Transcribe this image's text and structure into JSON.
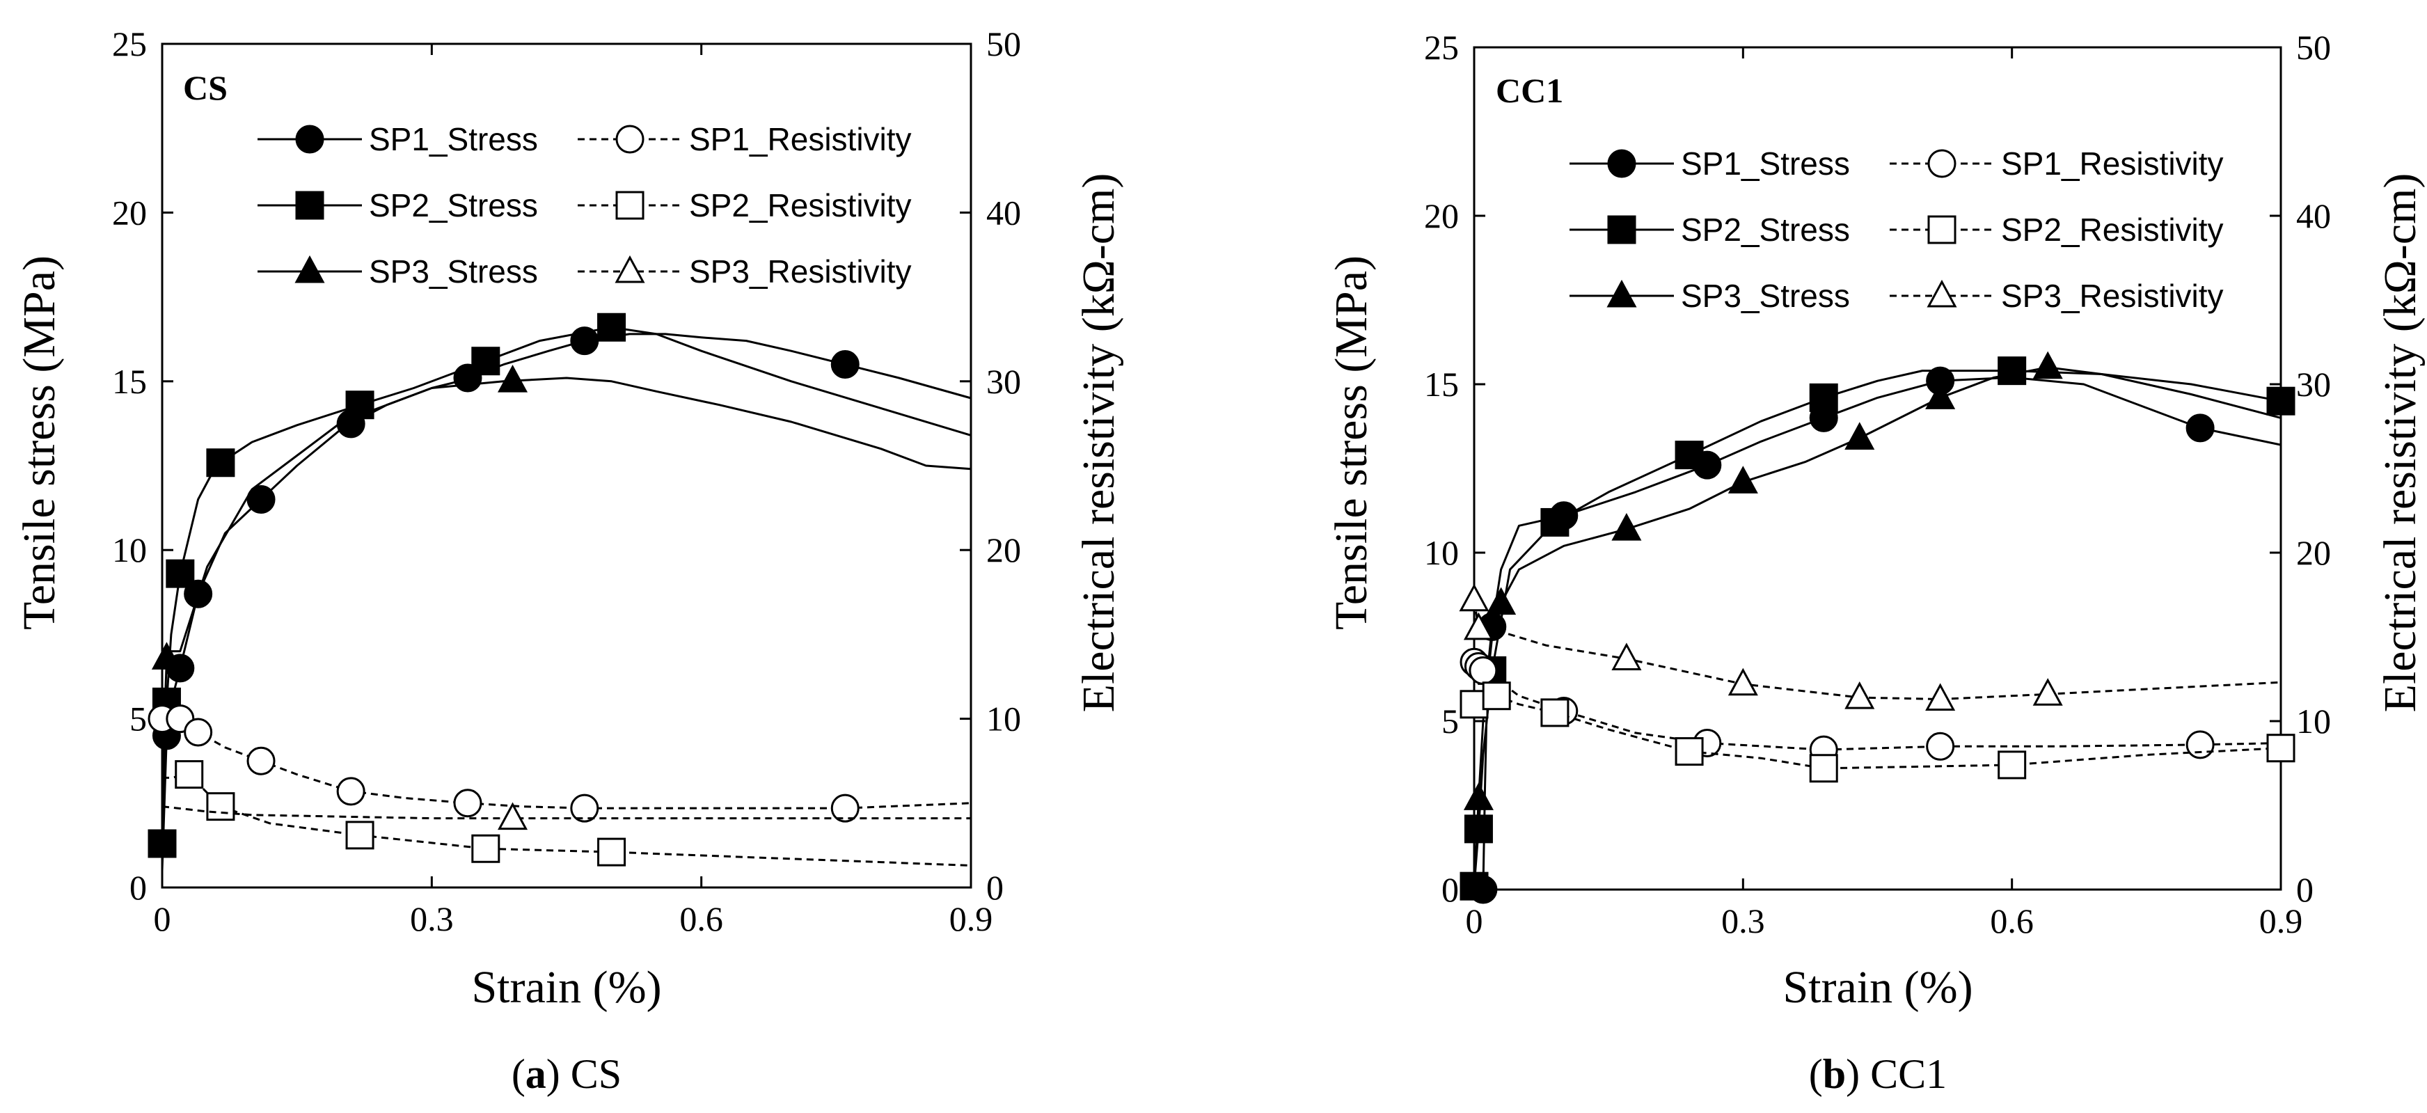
{
  "chart_data": [
    {
      "type": "line",
      "panel_label": "CS",
      "caption_letter": "a",
      "caption_text": "CS",
      "xlabel": "Strain (%)",
      "ylabel": "Tensile stress (MPa)",
      "y2label": "Electrical resistivity (kΩ-cm)",
      "xlim": [
        0,
        0.9
      ],
      "ylim": [
        0,
        25
      ],
      "y2lim": [
        0,
        50
      ],
      "xticks": [
        0,
        0.3,
        0.6,
        0.9
      ],
      "xtick_labels": [
        "0",
        "0.3",
        "0.6",
        "0.9"
      ],
      "yticks": [
        0,
        5,
        10,
        15,
        20,
        25
      ],
      "y2ticks": [
        0,
        10,
        20,
        30,
        40,
        50
      ],
      "grid": false,
      "legend": {
        "position": "top-right",
        "entries": [
          "SP1_Stress",
          "SP1_Resistivity",
          "SP2_Stress",
          "SP2_Resistivity",
          "SP3_Stress",
          "SP3_Resistivity"
        ]
      },
      "series": [
        {
          "name": "SP1_Stress",
          "axis": "left",
          "marker": "circle",
          "filled": true,
          "dashed": false,
          "x": [
            0,
            0.005,
            0.01,
            0.02,
            0.04,
            0.07,
            0.11,
            0.15,
            0.2,
            0.25,
            0.3,
            0.33,
            0.38,
            0.43,
            0.47,
            0.52,
            0.56,
            0.6,
            0.65,
            0.7,
            0.76,
            0.82,
            0.9
          ],
          "y": [
            0.5,
            4.5,
            5.5,
            6.5,
            8.7,
            10.5,
            11.5,
            12.5,
            13.6,
            14.3,
            14.8,
            15.0,
            15.5,
            15.9,
            16.2,
            16.4,
            16.4,
            16.3,
            16.2,
            15.9,
            15.5,
            15.1,
            14.5
          ],
          "marker_x": [
            0.005,
            0.02,
            0.04,
            0.11,
            0.21,
            0.34,
            0.47,
            0.76
          ]
        },
        {
          "name": "SP2_Stress",
          "axis": "left",
          "marker": "square",
          "filled": true,
          "dashed": false,
          "x": [
            0,
            0.002,
            0.005,
            0.01,
            0.02,
            0.04,
            0.06,
            0.1,
            0.15,
            0.22,
            0.28,
            0.35,
            0.42,
            0.5,
            0.55,
            0.6,
            0.7,
            0.8,
            0.9
          ],
          "y": [
            1.3,
            3.5,
            5.5,
            7.5,
            9.3,
            11.5,
            12.5,
            13.2,
            13.7,
            14.3,
            14.8,
            15.5,
            16.2,
            16.6,
            16.4,
            15.9,
            15.0,
            14.2,
            13.4
          ],
          "marker_x": [
            0,
            0.005,
            0.02,
            0.065,
            0.22,
            0.36,
            0.5
          ]
        },
        {
          "name": "SP3_Stress",
          "axis": "left",
          "marker": "triangle",
          "filled": true,
          "dashed": false,
          "x": [
            0,
            0.005,
            0.01,
            0.02,
            0.05,
            0.1,
            0.15,
            0.2,
            0.3,
            0.38,
            0.45,
            0.5,
            0.55,
            0.62,
            0.7,
            0.8,
            0.85,
            0.9
          ],
          "y": [
            3.0,
            6.8,
            7.0,
            7.0,
            9.5,
            11.8,
            12.8,
            13.8,
            14.8,
            15.0,
            15.1,
            15.0,
            14.7,
            14.3,
            13.8,
            13.0,
            12.5,
            12.4
          ],
          "marker_x": [
            0.005,
            0.39
          ]
        },
        {
          "name": "SP1_Resistivity",
          "axis": "right",
          "marker": "circle",
          "filled": false,
          "dashed": true,
          "x": [
            0,
            0.02,
            0.04,
            0.07,
            0.11,
            0.15,
            0.21,
            0.27,
            0.34,
            0.4,
            0.47,
            0.6,
            0.76,
            0.9
          ],
          "y": [
            10.0,
            10.0,
            9.2,
            8.3,
            7.5,
            6.7,
            5.7,
            5.3,
            5.0,
            4.8,
            4.7,
            4.7,
            4.7,
            5.0
          ],
          "marker_x": [
            0,
            0.02,
            0.04,
            0.11,
            0.21,
            0.34,
            0.47,
            0.76
          ]
        },
        {
          "name": "SP2_Resistivity",
          "axis": "right",
          "marker": "square",
          "filled": false,
          "dashed": true,
          "x": [
            0,
            0.01,
            0.03,
            0.065,
            0.12,
            0.22,
            0.36,
            0.5,
            0.65,
            0.8,
            0.9
          ],
          "y": [
            6.5,
            6.5,
            6.7,
            4.8,
            3.8,
            3.1,
            2.3,
            2.1,
            1.8,
            1.5,
            1.3
          ],
          "marker_x": [
            0.03,
            0.065,
            0.22,
            0.36,
            0.5
          ]
        },
        {
          "name": "SP3_Resistivity",
          "axis": "right",
          "marker": "triangle",
          "filled": false,
          "dashed": true,
          "x": [
            0,
            0.05,
            0.1,
            0.2,
            0.3,
            0.39,
            0.5,
            0.6,
            0.7,
            0.8,
            0.9
          ],
          "y": [
            4.8,
            4.5,
            4.3,
            4.2,
            4.1,
            4.1,
            4.1,
            4.1,
            4.1,
            4.1,
            4.1
          ],
          "marker_x": [
            0.39
          ]
        }
      ]
    },
    {
      "type": "line",
      "panel_label": "CC1",
      "caption_letter": "b",
      "caption_text": "CC1",
      "xlabel": "Strain (%)",
      "ylabel": "Tensile stress (MPa)",
      "y2label": "Electrical resistivity (kΩ-cm)",
      "xlim": [
        0,
        0.9
      ],
      "ylim": [
        0,
        25
      ],
      "y2lim": [
        0,
        50
      ],
      "xticks": [
        0,
        0.3,
        0.6,
        0.9
      ],
      "xtick_labels": [
        "0",
        "0.3",
        "0.6",
        "0.9"
      ],
      "yticks": [
        0,
        5,
        10,
        15,
        20,
        25
      ],
      "y2ticks": [
        0,
        10,
        20,
        30,
        40,
        50
      ],
      "grid": false,
      "legend": {
        "position": "top-right",
        "entries": [
          "SP1_Stress",
          "SP1_Resistivity",
          "SP2_Stress",
          "SP2_Resistivity",
          "SP3_Stress",
          "SP3_Resistivity"
        ]
      },
      "series": [
        {
          "name": "SP1_Stress",
          "axis": "left",
          "marker": "circle",
          "filled": true,
          "dashed": false,
          "x": [
            0.01,
            0.012,
            0.015,
            0.02,
            0.03,
            0.05,
            0.1,
            0.18,
            0.26,
            0.32,
            0.39,
            0.45,
            0.52,
            0.6,
            0.68,
            0.75,
            0.81,
            0.9
          ],
          "y": [
            0,
            3.0,
            6.5,
            7.8,
            9.5,
            10.8,
            11.1,
            11.8,
            12.6,
            13.3,
            14.0,
            14.6,
            15.1,
            15.2,
            15.0,
            14.3,
            13.7,
            13.2
          ],
          "marker_x": [
            0.01,
            0.02,
            0.1,
            0.26,
            0.39,
            0.52,
            0.81
          ]
        },
        {
          "name": "SP2_Stress",
          "axis": "left",
          "marker": "square",
          "filled": true,
          "dashed": false,
          "x": [
            0,
            0.005,
            0.01,
            0.02,
            0.04,
            0.09,
            0.15,
            0.24,
            0.32,
            0.39,
            0.45,
            0.5,
            0.6,
            0.7,
            0.8,
            0.9
          ],
          "y": [
            0.1,
            1.8,
            4.0,
            6.5,
            9.5,
            10.9,
            11.8,
            12.9,
            13.9,
            14.6,
            15.1,
            15.4,
            15.4,
            15.3,
            15.0,
            14.5
          ],
          "marker_x": [
            0,
            0.005,
            0.02,
            0.09,
            0.24,
            0.39,
            0.6,
            0.9
          ]
        },
        {
          "name": "SP3_Stress",
          "axis": "left",
          "marker": "triangle",
          "filled": true,
          "dashed": false,
          "x": [
            0,
            0.005,
            0.01,
            0.02,
            0.03,
            0.05,
            0.1,
            0.17,
            0.24,
            0.3,
            0.37,
            0.43,
            0.52,
            0.58,
            0.64,
            0.7,
            0.8,
            0.9
          ],
          "y": [
            0,
            2.7,
            5.0,
            7.5,
            8.5,
            9.5,
            10.2,
            10.7,
            11.3,
            12.1,
            12.7,
            13.4,
            14.6,
            15.2,
            15.5,
            15.3,
            14.7,
            14.0
          ],
          "marker_x": [
            0.005,
            0.03,
            0.17,
            0.3,
            0.43,
            0.52,
            0.64
          ]
        },
        {
          "name": "SP1_Resistivity",
          "axis": "right",
          "marker": "circle",
          "filled": false,
          "dashed": true,
          "x": [
            0,
            0.01,
            0.02,
            0.05,
            0.1,
            0.18,
            0.26,
            0.39,
            0.52,
            0.65,
            0.81,
            0.9
          ],
          "y": [
            13.5,
            13.0,
            12.7,
            11.5,
            10.6,
            9.3,
            8.7,
            8.3,
            8.5,
            8.5,
            8.6,
            8.7
          ],
          "marker_x": [
            0,
            0.005,
            0.01,
            0.1,
            0.26,
            0.39,
            0.52,
            0.81
          ]
        },
        {
          "name": "SP2_Resistivity",
          "axis": "right",
          "marker": "square",
          "filled": false,
          "dashed": true,
          "x": [
            0,
            0.01,
            0.025,
            0.05,
            0.09,
            0.15,
            0.24,
            0.32,
            0.39,
            0.5,
            0.6,
            0.75,
            0.9
          ],
          "y": [
            11.0,
            11.5,
            11.5,
            11.0,
            10.5,
            9.5,
            8.2,
            7.8,
            7.2,
            7.3,
            7.4,
            8.0,
            8.4
          ],
          "marker_x": [
            0,
            0.025,
            0.09,
            0.24,
            0.39,
            0.6,
            0.9
          ]
        },
        {
          "name": "SP3_Resistivity",
          "axis": "right",
          "marker": "triangle",
          "filled": false,
          "dashed": true,
          "x": [
            0,
            0.005,
            0.03,
            0.08,
            0.17,
            0.3,
            0.43,
            0.52,
            0.64,
            0.75,
            0.9
          ],
          "y": [
            17.2,
            15.5,
            15.3,
            14.5,
            13.7,
            12.2,
            11.4,
            11.3,
            11.6,
            11.9,
            12.3
          ],
          "marker_x": [
            0,
            0.005,
            0.17,
            0.3,
            0.43,
            0.52,
            0.64
          ]
        }
      ]
    }
  ]
}
